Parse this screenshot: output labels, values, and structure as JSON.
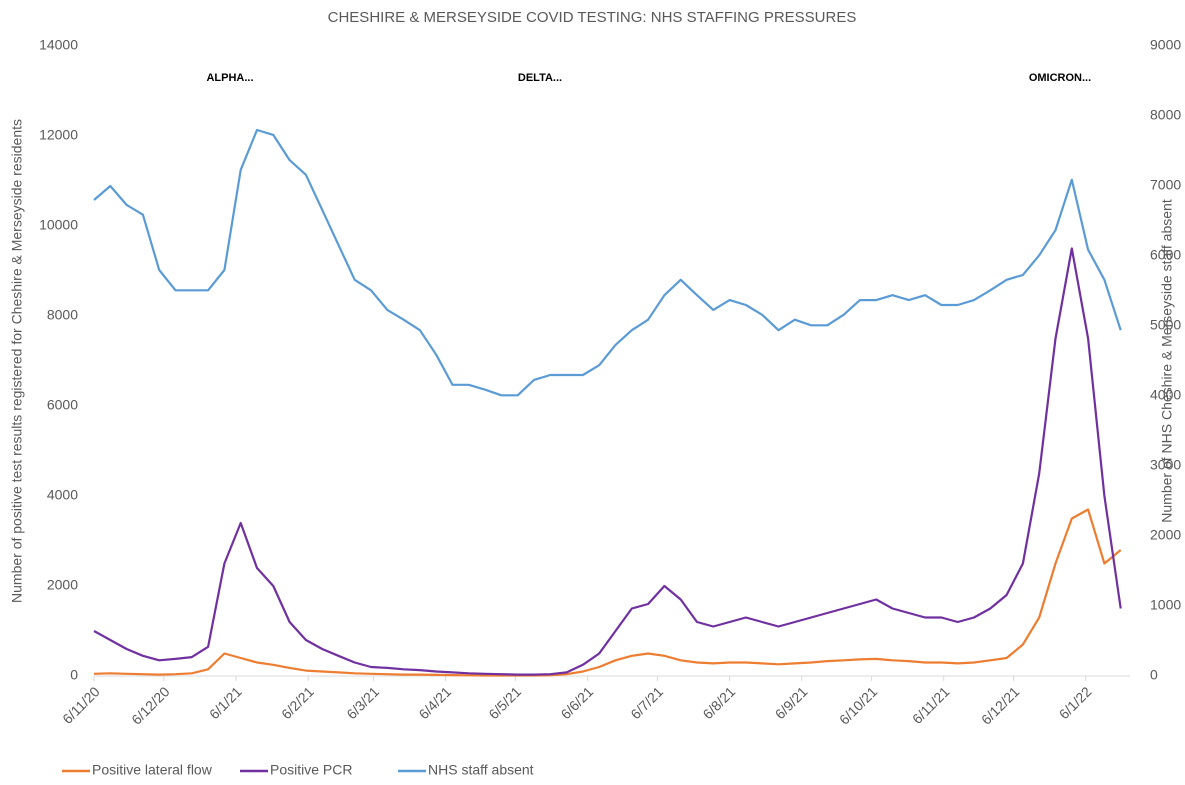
{
  "chart_data": {
    "type": "line",
    "title": "CHESHIRE & MERSEYSIDE COVID TESTING: NHS STAFFING PRESSURES",
    "y_label": "Number of positive test results registered for Cheshire & Merseyside residents",
    "y2_label": "Number of NHS Cheshire & Merseyside staff absent",
    "annotations": [
      "ALPHA...",
      "DELTA...",
      "OMICRON..."
    ],
    "x": [
      "6/11/20",
      "13/11/20",
      "20/11/20",
      "27/11/20",
      "4/12/20",
      "11/12/20",
      "18/12/20",
      "25/12/20",
      "1/1/21",
      "8/1/21",
      "15/1/21",
      "22/1/21",
      "29/1/21",
      "5/2/21",
      "12/2/21",
      "19/2/21",
      "26/2/21",
      "5/3/21",
      "12/3/21",
      "19/3/21",
      "26/3/21",
      "2/4/21",
      "9/4/21",
      "16/4/21",
      "23/4/21",
      "30/4/21",
      "7/5/21",
      "14/5/21",
      "21/5/21",
      "28/5/21",
      "4/6/21",
      "11/6/21",
      "18/6/21",
      "25/6/21",
      "2/7/21",
      "9/7/21",
      "16/7/21",
      "23/7/21",
      "30/7/21",
      "6/8/21",
      "13/8/21",
      "20/8/21",
      "27/8/21",
      "3/9/21",
      "10/9/21",
      "17/9/21",
      "24/9/21",
      "1/10/21",
      "8/10/21",
      "15/10/21",
      "22/10/21",
      "29/10/21",
      "5/11/21",
      "12/11/21",
      "19/11/21",
      "26/11/21",
      "3/12/21",
      "10/12/21",
      "17/12/21",
      "24/12/21",
      "31/12/21",
      "7/1/22",
      "14/1/22",
      "21/1/22"
    ],
    "xlim": [
      "6/11/20",
      "25/1/22"
    ],
    "xticks": [
      "6/11/20",
      "6/12/20",
      "6/1/21",
      "6/2/21",
      "6/3/21",
      "6/4/21",
      "6/5/21",
      "6/6/21",
      "6/7/21",
      "6/8/21",
      "6/9/21",
      "6/10/21",
      "6/11/21",
      "6/12/21",
      "6/1/22"
    ],
    "ylim": [
      0,
      14000
    ],
    "yticks": [
      0,
      2000,
      4000,
      6000,
      8000,
      10000,
      12000,
      14000
    ],
    "y2lim": [
      0,
      9000
    ],
    "y2ticks": [
      0,
      1000,
      2000,
      3000,
      4000,
      5000,
      6000,
      7000,
      8000,
      9000
    ],
    "grid": false,
    "legend": "bottom-left",
    "series": [
      {
        "name": "Positive lateral flow",
        "color": "#ed7d31",
        "values": [
          50,
          60,
          50,
          40,
          30,
          40,
          60,
          150,
          500,
          400,
          300,
          250,
          180,
          120,
          100,
          80,
          60,
          50,
          40,
          30,
          30,
          25,
          20,
          15,
          10,
          10,
          10,
          10,
          15,
          40,
          100,
          200,
          350,
          450,
          500,
          450,
          350,
          300,
          280,
          300,
          300,
          280,
          260,
          280,
          300,
          330,
          350,
          370,
          380,
          350,
          330,
          300,
          300,
          280,
          300,
          350,
          400,
          700,
          1300,
          2500,
          3500,
          3700,
          2500,
          2800
        ]
      },
      {
        "name": "Positive PCR",
        "color": "#7030a0",
        "values": [
          1000,
          800,
          600,
          450,
          350,
          380,
          420,
          650,
          2500,
          3400,
          2400,
          2000,
          1200,
          800,
          600,
          450,
          300,
          200,
          180,
          150,
          130,
          100,
          80,
          60,
          50,
          40,
          30,
          30,
          40,
          80,
          250,
          500,
          1000,
          1500,
          1600,
          2000,
          1700,
          1200,
          1100,
          1200,
          1300,
          1200,
          1100,
          1200,
          1300,
          1400,
          1500,
          1600,
          1700,
          1500,
          1400,
          1300,
          1300,
          1200,
          1300,
          1500,
          1800,
          2500,
          4500,
          7500,
          9500,
          7500,
          4000,
          1500
        ]
      },
      {
        "name": "NHS staff absent",
        "color": "#5b9bd5",
        "axis": "y2",
        "values": [
          6800,
          7000,
          6730,
          6590,
          5800,
          5510,
          5510,
          5510,
          5800,
          7230,
          7800,
          7730,
          7370,
          7160,
          6660,
          6160,
          5660,
          5510,
          5230,
          5090,
          4940,
          4590,
          4160,
          4160,
          4090,
          4010,
          4010,
          4230,
          4300,
          4300,
          4300,
          4440,
          4730,
          4940,
          5090,
          5440,
          5660,
          5440,
          5230,
          5370,
          5300,
          5160,
          4940,
          5090,
          5010,
          5010,
          5160,
          5370,
          5370,
          5440,
          5370,
          5440,
          5300,
          5300,
          5370,
          5510,
          5660,
          5730,
          6010,
          6370,
          7090,
          6090,
          5660,
          4940
        ]
      }
    ]
  }
}
